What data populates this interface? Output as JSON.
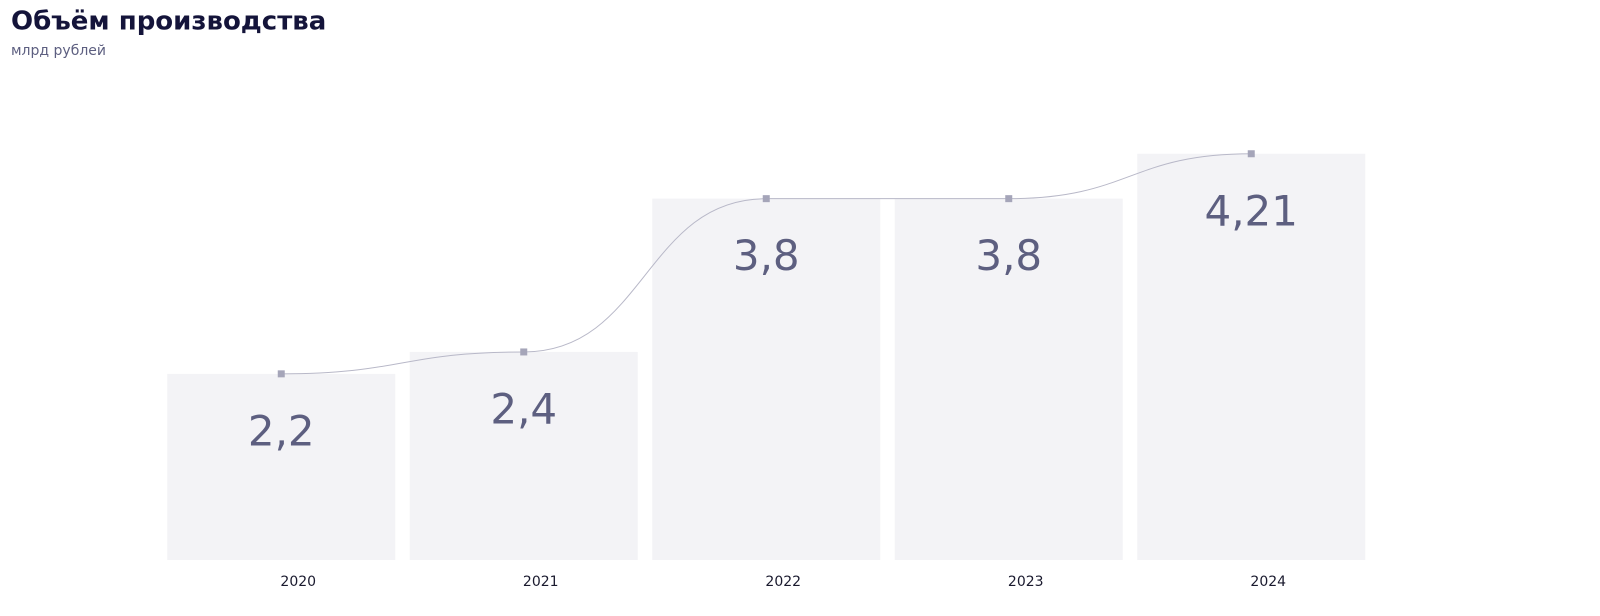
{
  "chart_data": {
    "type": "bar",
    "title": "Объём производства",
    "subtitle": "млрд рублей",
    "categories": [
      "2020",
      "2021",
      "2022",
      "2023",
      "2024"
    ],
    "values": [
      2.2,
      2.4,
      3.8,
      3.8,
      4.21
    ],
    "value_labels": [
      "2,2",
      "2,4",
      "3,8",
      "3,8",
      "4,21"
    ],
    "color": "#f3f3f6",
    "line_color": "#b8b8c8",
    "marker_color": "#a5a5b9",
    "ylim": [
      0.5,
      4.5
    ],
    "grid": false
  }
}
